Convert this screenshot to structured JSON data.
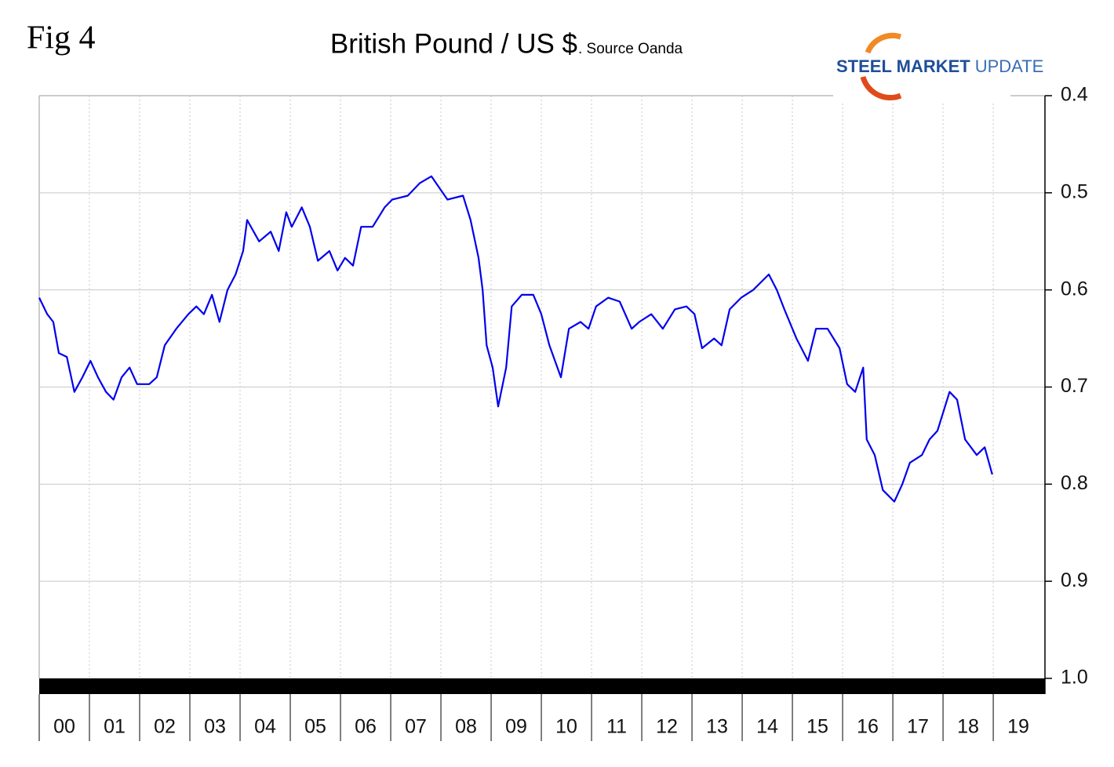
{
  "fig_label": "Fig 4",
  "logo": {
    "bold": "STEEL MARKET",
    "light": "UPDATE"
  },
  "chart_data": {
    "type": "line",
    "title": "British Pound / US $",
    "subtitle": ". Source Oanda",
    "x": [
      0,
      0.16,
      0.28,
      0.39,
      0.55,
      0.7,
      0.86,
      1.02,
      1.17,
      1.33,
      1.48,
      1.64,
      1.8,
      1.95,
      2.19,
      2.34,
      2.5,
      2.73,
      2.97,
      3.13,
      3.28,
      3.44,
      3.59,
      3.75,
      3.91,
      4.06,
      4.14,
      4.38,
      4.61,
      4.77,
      4.92,
      5.03,
      5.23,
      5.39,
      5.55,
      5.78,
      5.94,
      6.09,
      6.25,
      6.41,
      6.64,
      6.88,
      7.03,
      7.34,
      7.58,
      7.81,
      7.97,
      8.13,
      8.44,
      8.59,
      8.75,
      8.83,
      8.91,
      9.03,
      9.14,
      9.3,
      9.41,
      9.61,
      9.84,
      10,
      10.16,
      10.39,
      10.55,
      10.78,
      10.94,
      11.09,
      11.33,
      11.56,
      11.8,
      11.95,
      12.19,
      12.42,
      12.66,
      12.89,
      13.05,
      13.2,
      13.44,
      13.59,
      13.75,
      13.98,
      14.22,
      14.53,
      14.69,
      14.84,
      15.08,
      15.31,
      15.47,
      15.7,
      15.94,
      16.09,
      16.25,
      16.41,
      16.48,
      16.64,
      16.8,
      17.03,
      17.19,
      17.34,
      17.58,
      17.73,
      17.89,
      18.13,
      18.28,
      18.44,
      18.67,
      18.83,
      18.98
    ],
    "series": [
      {
        "color": "#0000ee",
        "values": [
          0.608,
          0.625,
          0.633,
          0.665,
          0.669,
          0.705,
          0.69,
          0.673,
          0.69,
          0.705,
          0.713,
          0.69,
          0.68,
          0.697,
          0.697,
          0.69,
          0.657,
          0.64,
          0.625,
          0.617,
          0.625,
          0.605,
          0.633,
          0.6,
          0.584,
          0.56,
          0.528,
          0.55,
          0.54,
          0.56,
          0.52,
          0.535,
          0.515,
          0.535,
          0.57,
          0.56,
          0.58,
          0.567,
          0.575,
          0.535,
          0.535,
          0.515,
          0.507,
          0.503,
          0.49,
          0.483,
          0.495,
          0.507,
          0.503,
          0.528,
          0.567,
          0.6,
          0.657,
          0.68,
          0.72,
          0.68,
          0.617,
          0.605,
          0.605,
          0.625,
          0.657,
          0.69,
          0.64,
          0.633,
          0.64,
          0.617,
          0.608,
          0.612,
          0.64,
          0.633,
          0.625,
          0.64,
          0.62,
          0.617,
          0.625,
          0.66,
          0.65,
          0.657,
          0.62,
          0.608,
          0.6,
          0.584,
          0.6,
          0.62,
          0.65,
          0.673,
          0.64,
          0.64,
          0.66,
          0.697,
          0.705,
          0.68,
          0.754,
          0.77,
          0.806,
          0.818,
          0.8,
          0.778,
          0.77,
          0.754,
          0.745,
          0.705,
          0.713,
          0.754,
          0.77,
          0.762,
          0.79
        ]
      }
    ],
    "xlim": [
      0,
      20.03
    ],
    "xticks": [
      {
        "value": 0,
        "label": "00"
      },
      {
        "value": 1,
        "label": "01"
      },
      {
        "value": 2,
        "label": "02"
      },
      {
        "value": 3,
        "label": "03"
      },
      {
        "value": 4,
        "label": "04"
      },
      {
        "value": 5,
        "label": "05"
      },
      {
        "value": 6,
        "label": "06"
      },
      {
        "value": 7,
        "label": "07"
      },
      {
        "value": 8,
        "label": "08"
      },
      {
        "value": 9,
        "label": "09"
      },
      {
        "value": 10,
        "label": "10"
      },
      {
        "value": 11,
        "label": "11"
      },
      {
        "value": 12,
        "label": "12"
      },
      {
        "value": 13,
        "label": "13"
      },
      {
        "value": 14,
        "label": "14"
      },
      {
        "value": 15,
        "label": "15"
      },
      {
        "value": 16,
        "label": "16"
      },
      {
        "value": 17,
        "label": "17"
      },
      {
        "value": 18,
        "label": "18"
      },
      {
        "value": 19,
        "label": "19"
      }
    ],
    "ylim": [
      0.4,
      1.0
    ],
    "yticks": [
      0.4,
      0.5,
      0.6,
      0.7,
      0.8,
      0.9,
      {
        "value": 1.0,
        "label": "1.0"
      }
    ],
    "y_inverted": true,
    "grid": true
  }
}
